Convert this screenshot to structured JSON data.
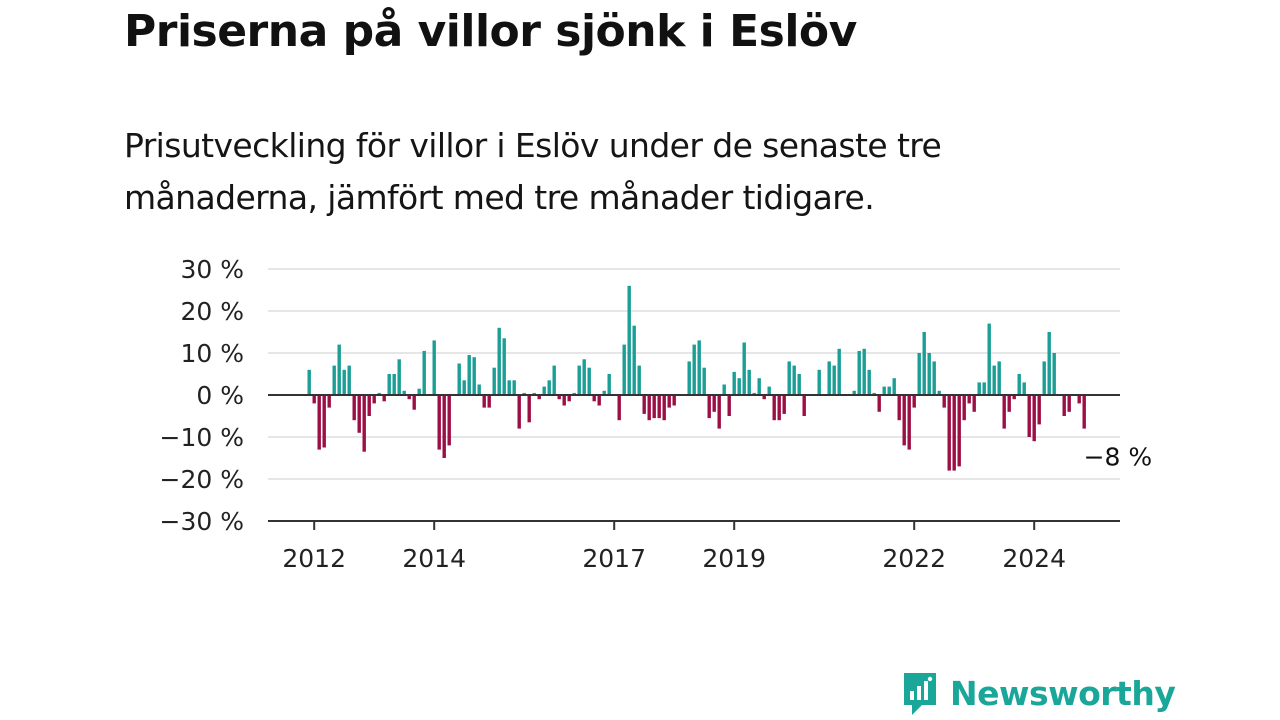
{
  "title": "Priserna på villor sjönk i Eslöv",
  "subtitle": "Prisutveckling för villor i Eslöv under de senaste tre månaderna, jämfört med tre månader tidigare.",
  "brand": {
    "name": "Newsworthy",
    "logo_icon": "bar-chart-speech-bubble-icon"
  },
  "colors": {
    "positive": "#1a9e96",
    "negative": "#9c0f45",
    "grid": "#dddddd",
    "axis": "#333333",
    "brand": "#1aa79a"
  },
  "chart_data": {
    "type": "bar",
    "title": "Priserna på villor sjönk i Eslöv",
    "ylim": [
      -30,
      30
    ],
    "yticks": [
      -30,
      -20,
      -10,
      0,
      10,
      20,
      30
    ],
    "ytick_labels": [
      "−30 %",
      "−20 %",
      "−10 %",
      "0 %",
      "10 %",
      "20 %",
      "30 %"
    ],
    "xticks": [
      {
        "label": "2012",
        "year": 2012
      },
      {
        "label": "2014",
        "year": 2014
      },
      {
        "label": "2017",
        "year": 2017
      },
      {
        "label": "2019",
        "year": 2019
      },
      {
        "label": "2022",
        "year": 2022
      },
      {
        "label": "2024",
        "year": 2024
      }
    ],
    "grid": true,
    "start": "2011-12",
    "values": [
      6,
      -2,
      -13,
      -12.5,
      -3,
      7,
      12,
      6,
      7,
      -6,
      -9,
      -13.5,
      -5,
      -2,
      0.5,
      -1.5,
      5,
      5,
      8.5,
      1,
      -1,
      -3.5,
      1.5,
      10.5,
      0,
      13,
      -13,
      -15,
      -12,
      0,
      7.5,
      3.5,
      9.5,
      9,
      2.5,
      -3,
      -3,
      6.5,
      16,
      13.5,
      3.5,
      3.5,
      -8,
      0.5,
      -6.5,
      0.5,
      -1,
      2,
      3.5,
      7,
      -1,
      -2.5,
      -1.5,
      0.5,
      7,
      8.5,
      6.5,
      -1.5,
      -2.5,
      1,
      5,
      0,
      -6,
      12,
      26,
      16.5,
      7,
      -4.5,
      -6,
      -5.5,
      -5.5,
      -6,
      -3,
      -2.5,
      0,
      0,
      8,
      12,
      13,
      6.5,
      -5.5,
      -4,
      -8,
      2.5,
      -5,
      5.5,
      4,
      12.5,
      6,
      0.5,
      4,
      -1,
      2,
      -6,
      -6,
      -4.5,
      8,
      7,
      5,
      -5,
      0,
      0,
      6,
      0,
      8,
      7,
      11,
      0,
      0,
      1,
      10.5,
      11,
      6,
      0.5,
      -4,
      2,
      2,
      4,
      -6,
      -12,
      -13,
      -3,
      10,
      15,
      10,
      8,
      1,
      -3,
      -18,
      -18,
      -17,
      -6,
      -2,
      -4,
      3,
      3,
      17,
      7,
      8,
      -8,
      -4,
      -1,
      5,
      3,
      -10,
      -11,
      -7,
      8,
      15,
      10,
      0,
      -5,
      -4,
      0,
      -2,
      -8
    ]
  },
  "end_label": "−8 %"
}
